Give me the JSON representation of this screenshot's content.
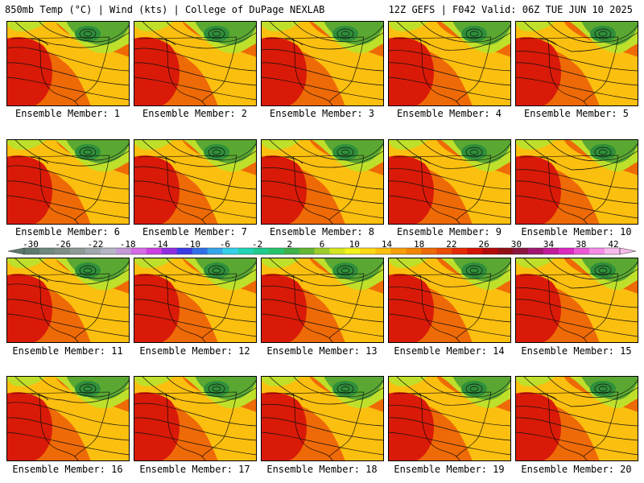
{
  "header": {
    "left": "850mb Temp (°C) | Wind (kts) | College of DuPage NEXLAB",
    "right": "12Z GEFS | F042 Valid: 06Z TUE JUN 10 2025"
  },
  "members": [
    "Ensemble Member: 1",
    "Ensemble Member: 2",
    "Ensemble Member: 3",
    "Ensemble Member: 4",
    "Ensemble Member: 5",
    "Ensemble Member: 6",
    "Ensemble Member: 7",
    "Ensemble Member: 8",
    "Ensemble Member: 9",
    "Ensemble Member: 10",
    "Ensemble Member: 11",
    "Ensemble Member: 12",
    "Ensemble Member: 13",
    "Ensemble Member: 14",
    "Ensemble Member: 15",
    "Ensemble Member: 16",
    "Ensemble Member: 17",
    "Ensemble Member: 18",
    "Ensemble Member: 19",
    "Ensemble Member: 20"
  ],
  "colorbar": {
    "ticks": [
      "-30",
      "-26",
      "-22",
      "-18",
      "-14",
      "-10",
      "-6",
      "-2",
      "2",
      "6",
      "10",
      "14",
      "18",
      "22",
      "26",
      "30",
      "34",
      "38",
      "42"
    ],
    "colors": [
      "#5e7a6c",
      "#6f8a7d",
      "#7f8f86",
      "#8e9a95",
      "#a0a7ad",
      "#b5b6c5",
      "#c59ad8",
      "#d66be8",
      "#cc3fe3",
      "#8f2ee0",
      "#3b3be6",
      "#2f6fe8",
      "#35a5ea",
      "#34d0e8",
      "#22d3b5",
      "#1fcb8d",
      "#27c36a",
      "#3db24a",
      "#63b633",
      "#9ccd2a",
      "#d6e521",
      "#f2f21c",
      "#fbd716",
      "#fbbf0f",
      "#f7a00a",
      "#f28707",
      "#ee6a06",
      "#ea4c05",
      "#e32a05",
      "#d41205",
      "#b40b0b",
      "#930f17",
      "#8a1640",
      "#a01670",
      "#c21a9a",
      "#dc29c0",
      "#ec57d8",
      "#f58ce6",
      "#f9baee"
    ],
    "unit": "°C"
  },
  "map": {
    "colors": {
      "hot": "#d91a08",
      "warm": "#ee6a06",
      "mild": "#fbbf0f",
      "cool": "#bfe02a",
      "cold": "#5aa832",
      "colder": "#2f8f3a"
    }
  }
}
